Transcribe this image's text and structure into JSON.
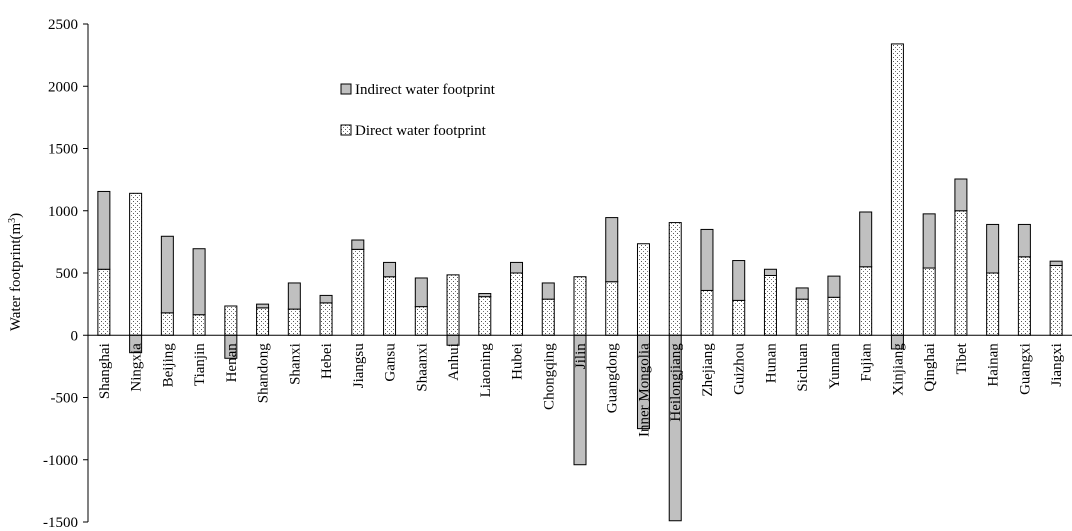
{
  "chart_data": {
    "type": "bar",
    "stacked": true,
    "xlabel": "",
    "ylabel_main": "Water footprint(m",
    "ylabel_sup": "3",
    "ylabel_close": ")",
    "ylim": [
      -1500,
      2500
    ],
    "yticks": [
      2500,
      2000,
      1500,
      1000,
      500,
      0,
      -500,
      -1000,
      -1500
    ],
    "grid": false,
    "legend_position": "upper-left-inside",
    "categories": [
      "Shanghai",
      "Ningxia",
      "Beijing",
      "Tianjin",
      "Henan",
      "Shandong",
      "Shanxi",
      "Hebei",
      "Jiangsu",
      "Gansu",
      "Shaanxi",
      "Anhui",
      "Liaoning",
      "Hubei",
      "Chongqing",
      "Jilin",
      "Guangdong",
      "Inner Mongolia",
      "Heilongjiang",
      "Zhejiang",
      "Guizhou",
      "Hunan",
      "Sichuan",
      "Yunnan",
      "Fujian",
      "Xinjiang",
      "Qinghai",
      "Tibet",
      "Hainan",
      "Guangxi",
      "Jiangxi"
    ],
    "series": [
      {
        "name": "Direct water footprint",
        "pattern": "dotted",
        "values": [
          530,
          1140,
          180,
          165,
          235,
          220,
          210,
          260,
          690,
          470,
          230,
          485,
          310,
          500,
          290,
          470,
          430,
          735,
          905,
          360,
          280,
          480,
          290,
          305,
          550,
          2340,
          540,
          1000,
          500,
          630,
          560
        ]
      },
      {
        "name": "Indirect water footprint",
        "pattern": "solid-gray",
        "color": "#c0c0c0",
        "values": [
          625,
          -140,
          615,
          530,
          -185,
          30,
          210,
          60,
          75,
          115,
          230,
          -80,
          25,
          85,
          130,
          -1040,
          515,
          -750,
          -1490,
          490,
          320,
          50,
          90,
          170,
          440,
          -110,
          435,
          255,
          390,
          260,
          35
        ]
      }
    ]
  }
}
